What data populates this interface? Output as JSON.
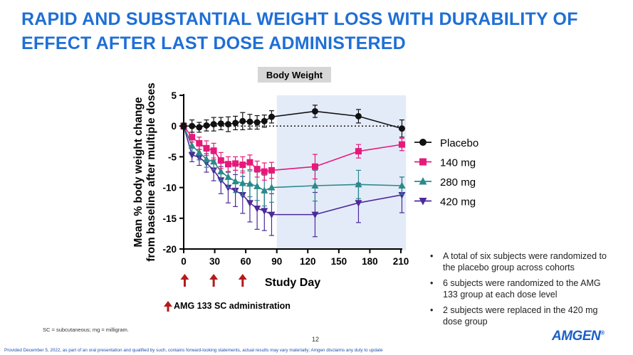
{
  "slide": {
    "title_line1": "RAPID AND SUBSTANTIAL WEIGHT LOSS WITH DURABILITY OF",
    "title_line2": "EFFECT AFTER LAST DOSE ADMINISTERED",
    "bullets": [
      "A total of six subjects were randomized to the placebo group across cohorts",
      "6 subjects were randomized to the AMG 133 group at each dose level",
      "2 subjects were replaced in the 420 mg dose group"
    ],
    "footnote": "SC = subcutaneous; mg = milligram.",
    "page_number": "12",
    "disclaimer": "Provided December 5, 2022, as part of an oral presentation and qualified by such, contains forward-looking statements, actual results may vary materially; Amgen disclaims any duty to update",
    "logo": "AMGEN",
    "logo_mark": "®",
    "dose_annotation": "AMG 133 SC administration"
  },
  "chart_data": {
    "type": "line",
    "title": "Body Weight",
    "xlabel": "Study Day",
    "ylabel_line1": "Mean % body weight change",
    "ylabel_line2": "from baseline after multiple doses",
    "xlim": [
      0,
      210
    ],
    "ylim": [
      -20,
      5
    ],
    "xticks": [
      0,
      30,
      60,
      90,
      120,
      150,
      180,
      210
    ],
    "yticks": [
      5,
      0,
      -5,
      -10,
      -15,
      -20
    ],
    "shaded_region": [
      90,
      215
    ],
    "dose_days": [
      1,
      29,
      57
    ],
    "colors": {
      "Placebo": "#111111",
      "140 mg": "#e6197a",
      "280 mg": "#2a8a8a",
      "420 mg": "#4b2a9a",
      "shade": "#e3ebf8",
      "arrow": "#b31b1b"
    },
    "series": [
      {
        "name": "Placebo",
        "marker": "circle",
        "x": [
          0,
          8,
          15,
          22,
          29,
          36,
          43,
          50,
          57,
          64,
          71,
          78,
          85,
          127,
          169,
          211
        ],
        "y": [
          0,
          0,
          -0.2,
          0.1,
          0.3,
          0.4,
          0.3,
          0.5,
          0.8,
          0.7,
          0.6,
          0.8,
          1.5,
          2.4,
          1.6,
          -0.4
        ],
        "err": [
          0.5,
          1.0,
          0.8,
          0.9,
          1.1,
          1.0,
          1.2,
          1.1,
          1.4,
          1.2,
          1.1,
          1.0,
          1.0,
          1.0,
          1.1,
          1.4
        ]
      },
      {
        "name": "140 mg",
        "marker": "square",
        "x": [
          0,
          8,
          15,
          22,
          29,
          36,
          43,
          50,
          57,
          64,
          71,
          78,
          85,
          127,
          169,
          211
        ],
        "y": [
          0,
          -1.8,
          -2.8,
          -3.6,
          -4.0,
          -5.6,
          -6.2,
          -6.1,
          -6.3,
          -5.9,
          -7.0,
          -7.4,
          -7.2,
          -6.6,
          -4.1,
          -3.0
        ],
        "err": [
          0.3,
          0.8,
          1.0,
          1.2,
          1.2,
          1.3,
          1.2,
          1.1,
          1.3,
          1.2,
          1.3,
          1.4,
          1.3,
          2.0,
          1.1,
          1.0
        ]
      },
      {
        "name": "280 mg",
        "marker": "triangle-up",
        "x": [
          0,
          8,
          15,
          22,
          29,
          36,
          43,
          50,
          57,
          64,
          71,
          78,
          85,
          127,
          169,
          211
        ],
        "y": [
          0,
          -3.2,
          -4.3,
          -5.4,
          -5.8,
          -7.4,
          -8.3,
          -9.0,
          -9.3,
          -9.4,
          -9.8,
          -10.5,
          -10.0,
          -9.7,
          -9.5,
          -9.7
        ],
        "err": [
          0.3,
          1.0,
          1.2,
          1.3,
          1.3,
          1.5,
          1.7,
          1.8,
          2.0,
          2.1,
          2.3,
          2.5,
          2.4,
          2.5,
          2.3,
          1.4
        ]
      },
      {
        "name": "420 mg",
        "marker": "triangle-down",
        "x": [
          0,
          8,
          15,
          22,
          29,
          36,
          43,
          50,
          57,
          64,
          71,
          78,
          85,
          127,
          169,
          211
        ],
        "y": [
          0,
          -4.7,
          -5.1,
          -6.0,
          -7.2,
          -8.8,
          -10.0,
          -10.5,
          -11.2,
          -12.5,
          -13.4,
          -13.8,
          -14.4,
          -14.4,
          -12.5,
          -11.2
        ],
        "err": [
          0.3,
          1.1,
          1.3,
          1.5,
          1.7,
          2.2,
          2.5,
          2.6,
          3.0,
          3.1,
          3.4,
          3.2,
          3.4,
          3.6,
          3.2,
          2.9
        ]
      }
    ],
    "legend_position": "right"
  }
}
